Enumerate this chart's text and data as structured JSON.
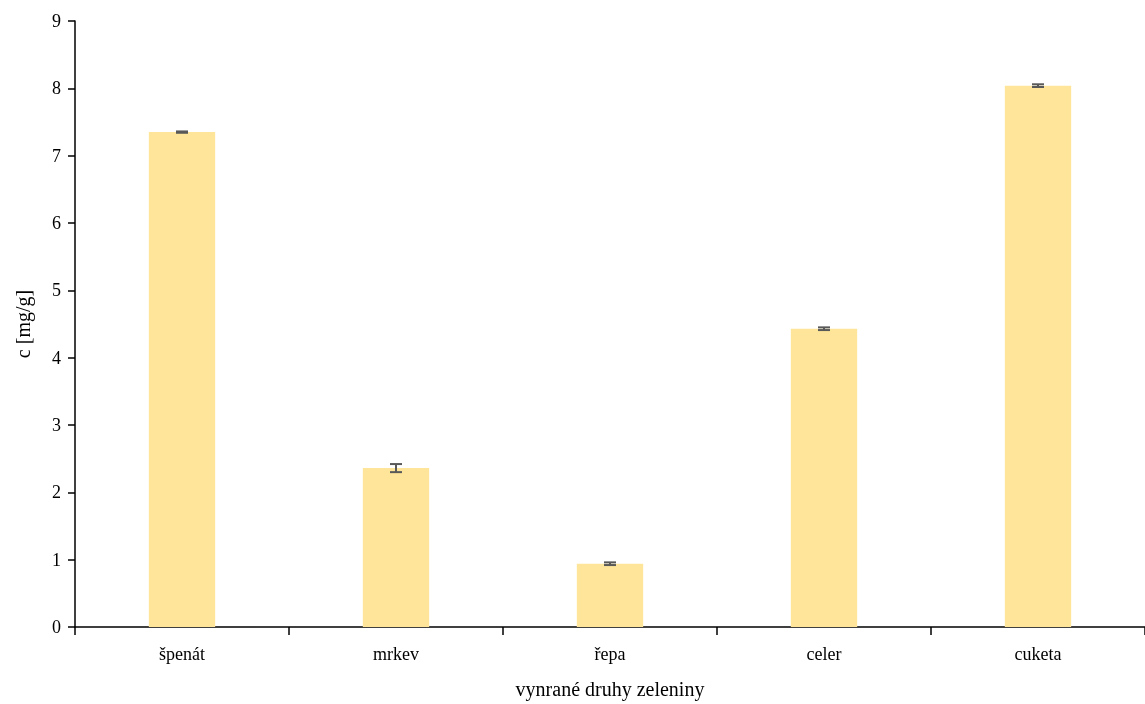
{
  "chart_data": {
    "type": "bar",
    "xlabel": "vynrané druhy zeleniny",
    "ylabel": "c [mg/g]",
    "categories": [
      "špenát",
      "mrkev",
      "řepa",
      "celer",
      "cuketa"
    ],
    "values": [
      7.35,
      2.36,
      0.94,
      4.43,
      8.04
    ],
    "errors": [
      0.01,
      0.06,
      0.02,
      0.02,
      0.02
    ],
    "color": "#ffe599",
    "ylim": [
      0,
      9
    ],
    "yticks": [
      0,
      1,
      2,
      3,
      4,
      5,
      6,
      7,
      8,
      9
    ],
    "grid": false
  }
}
